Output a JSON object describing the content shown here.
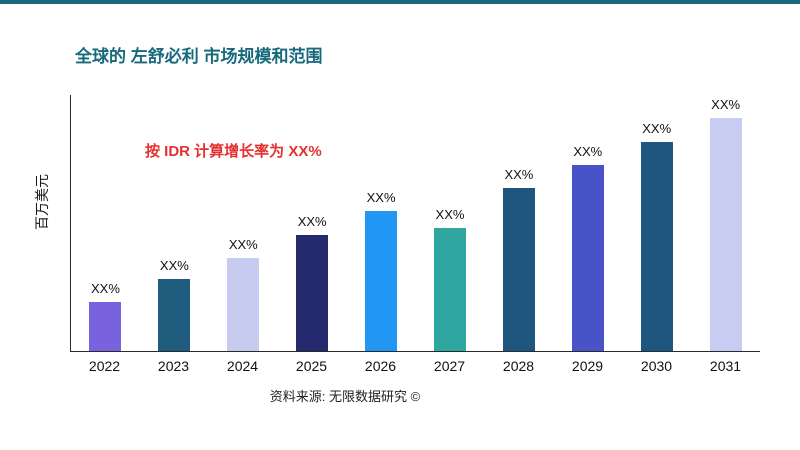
{
  "page": {
    "title": "全球的 左舒必利 市场规模和范围",
    "growth_note": "按 IDR 计算增长率为 XX%",
    "source": "资料来源: 无限数据研究 ©",
    "accent_color": "#17697C",
    "note_color": "#E53030"
  },
  "chart_data": {
    "type": "bar",
    "title": "全球的 左舒必利 市场规模和范围",
    "xlabel": "",
    "ylabel": "百万美元",
    "categories": [
      "2022",
      "2023",
      "2024",
      "2025",
      "2026",
      "2027",
      "2028",
      "2029",
      "2030",
      "2031"
    ],
    "values": [
      21,
      31,
      40,
      50,
      60,
      53,
      70,
      80,
      90,
      100
    ],
    "bar_labels": [
      "XX%",
      "XX%",
      "XX%",
      "XX%",
      "XX%",
      "XX%",
      "XX%",
      "XX%",
      "XX%",
      "XX%"
    ],
    "bar_colors": [
      "#7862DE",
      "#1F5C7E",
      "#C7CBEF",
      "#252A6E",
      "#2196F3",
      "#2FA7A0",
      "#1F567E",
      "#4953C8",
      "#1F567E",
      "#C9CCF2"
    ],
    "ylim": [
      0,
      110
    ],
    "grid": false,
    "legend": "none",
    "annotation": "按 IDR 计算增长率为 XX%",
    "source": "资料来源: 无限数据研究 ©"
  }
}
